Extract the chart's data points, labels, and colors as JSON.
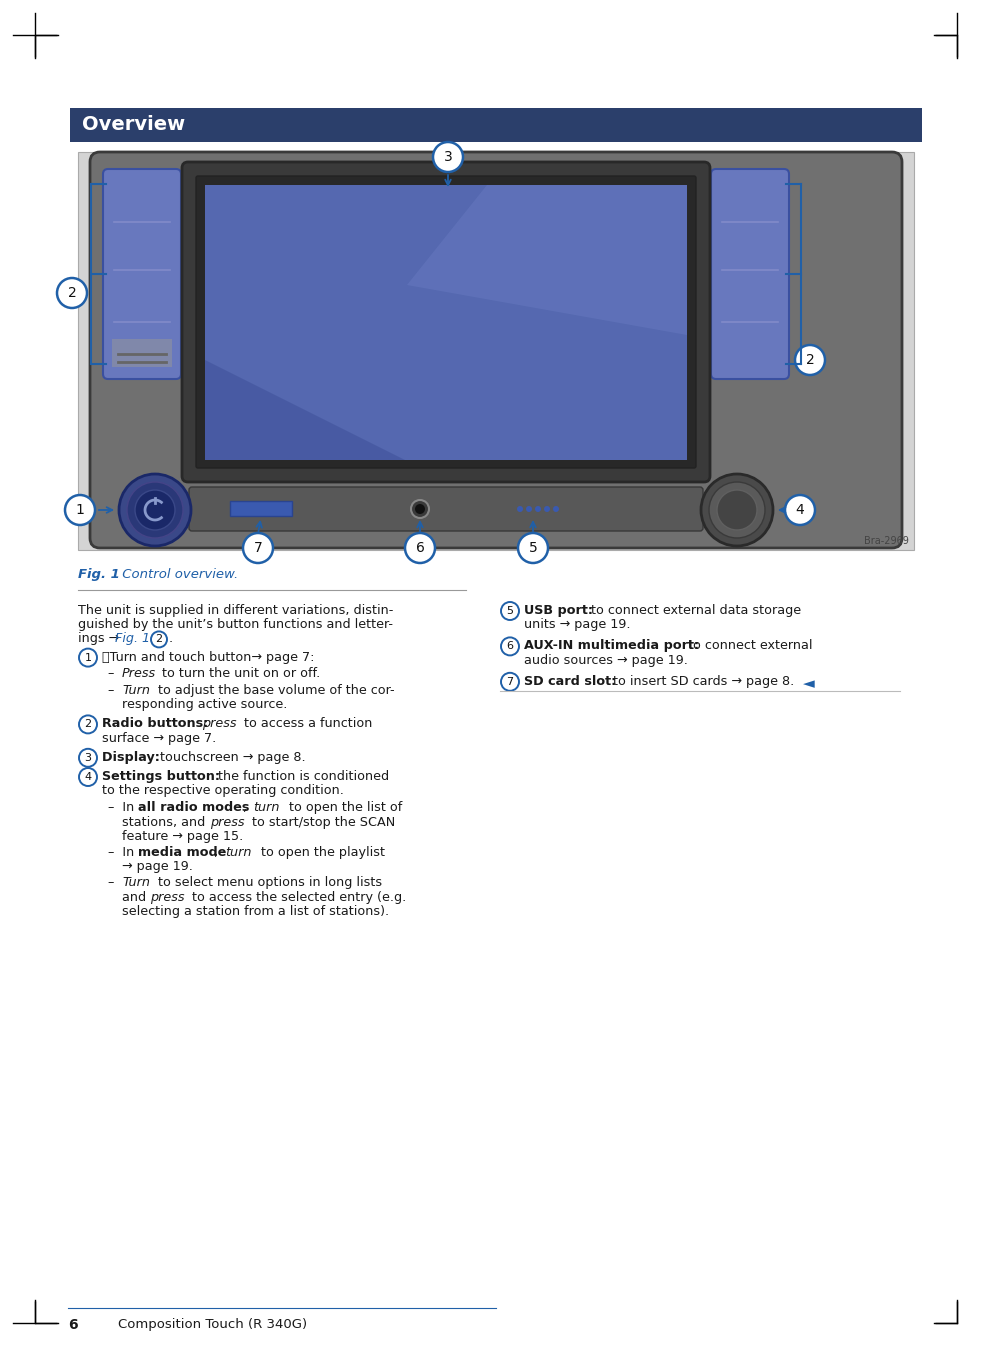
{
  "page_bg": "#ffffff",
  "header_bg": "#2b3f6b",
  "header_text": "Overview",
  "header_text_color": "#ffffff",
  "fig_caption_color": "#2060a8",
  "body_text_color": "#1a1a1a",
  "circle_stroke": "#2060a8",
  "circle_fill": "#ffffff",
  "arrow_color": "#2060a8",
  "page_number": "6",
  "footer_text": "Composition Touch (R 340G)",
  "divider_color": "#888888",
  "triangle_color": "#2060a8",
  "img_bg": "#d4d4d4",
  "dev_body": "#707070",
  "dev_dark": "#484848",
  "btn_blue": "#6878be",
  "screen_blue": "#5568b0",
  "bar_gray": "#585858"
}
